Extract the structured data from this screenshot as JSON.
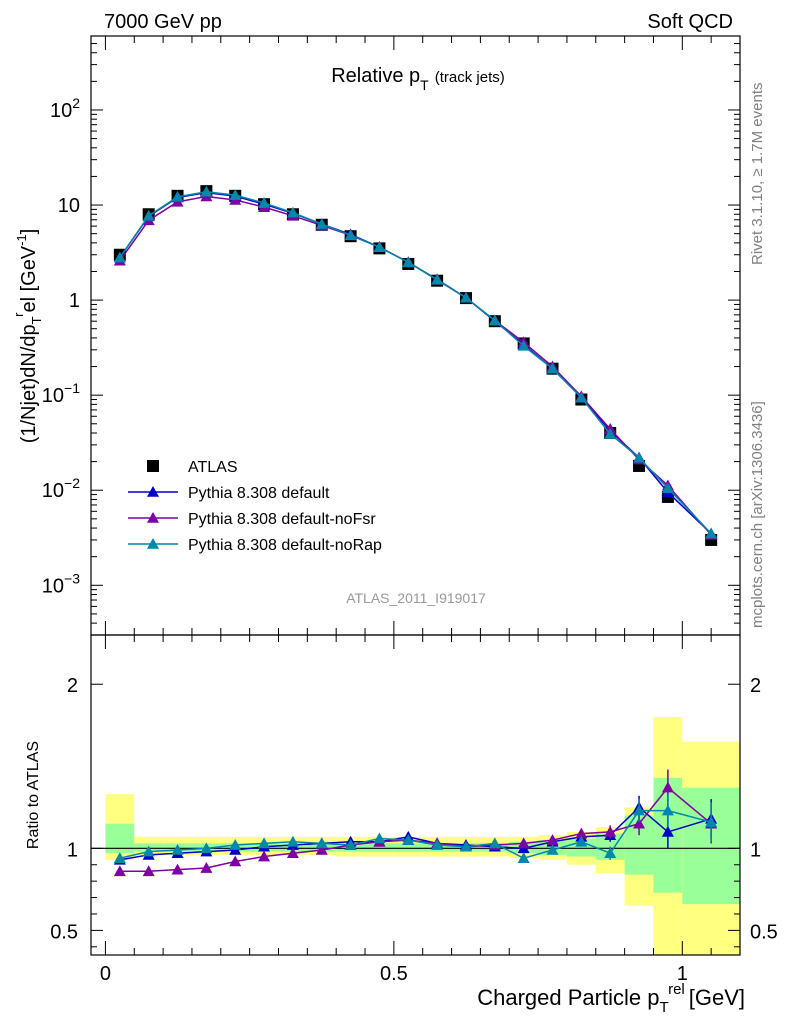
{
  "header": {
    "left": "7000 GeV pp",
    "right": "Soft QCD"
  },
  "side_labels": {
    "upper": "Rivet 3.1.10, ≥ 1.7M events",
    "lower": "mcplots.cern.ch [arXiv:1306.3436]"
  },
  "analysis_label": "ATLAS_2011_I919017",
  "colors": {
    "atlas": "#000000",
    "default": "#0000cc",
    "noFsr": "#7f00a5",
    "noRap": "#0088aa",
    "band_yellow": "#ffff80",
    "band_green": "#99ff99"
  },
  "chart_data": [
    {
      "type": "line",
      "panel": "main",
      "title": "Relative p_T (track jets)",
      "title_main": "Relative p",
      "title_sub": "T",
      "title_extra": "(track jets)",
      "ylabel": "(1/Njet)dN/dp_T^rel [GeV^-1]",
      "yscale": "log",
      "ylim": [
        0.0003,
        600
      ],
      "xlim": [
        -0.025,
        1.1
      ],
      "yticks": [
        {
          "value": 0.001,
          "base": "10",
          "exp": "−3"
        },
        {
          "value": 0.01,
          "base": "10",
          "exp": "−2"
        },
        {
          "value": 0.1,
          "base": "10",
          "exp": "−1"
        },
        {
          "value": 1,
          "base": "1",
          "exp": ""
        },
        {
          "value": 10,
          "base": "10",
          "exp": ""
        },
        {
          "value": 100,
          "base": "10",
          "exp": "2"
        }
      ],
      "legend_position": "bottom-left",
      "x": [
        0.025,
        0.075,
        0.125,
        0.175,
        0.225,
        0.275,
        0.325,
        0.375,
        0.425,
        0.475,
        0.525,
        0.575,
        0.625,
        0.675,
        0.725,
        0.775,
        0.825,
        0.875,
        0.925,
        0.975,
        1.05
      ],
      "series": [
        {
          "name": "ATLAS",
          "key": "atlas",
          "marker": "square",
          "values": [
            3.0,
            8.0,
            12.5,
            14.0,
            12.5,
            10.2,
            8.0,
            6.2,
            4.7,
            3.5,
            2.4,
            1.6,
            1.05,
            0.6,
            0.35,
            0.19,
            0.09,
            0.04,
            0.018,
            0.0085,
            0.003
          ]
        },
        {
          "name": "Pythia 8.308 default",
          "key": "default",
          "marker": "triangle",
          "values": [
            2.8,
            7.6,
            12.0,
            13.5,
            12.4,
            10.2,
            8.2,
            6.3,
            4.9,
            3.6,
            2.5,
            1.65,
            1.06,
            0.6,
            0.34,
            0.19,
            0.095,
            0.042,
            0.022,
            0.0095,
            0.0035
          ]
        },
        {
          "name": "Pythia 8.308 default-noFsr",
          "key": "noFsr",
          "marker": "triangle",
          "values": [
            2.6,
            6.9,
            10.8,
            12.3,
            11.3,
            9.5,
            7.7,
            6.1,
            4.8,
            3.6,
            2.5,
            1.63,
            1.06,
            0.61,
            0.36,
            0.2,
            0.097,
            0.044,
            0.021,
            0.0112,
            0.0034
          ]
        },
        {
          "name": "Pythia 8.308 default-noRap",
          "key": "noRap",
          "marker": "triangle",
          "values": [
            2.8,
            7.7,
            12.2,
            13.8,
            12.7,
            10.5,
            8.3,
            6.3,
            4.8,
            3.6,
            2.5,
            1.64,
            1.06,
            0.61,
            0.33,
            0.19,
            0.094,
            0.039,
            0.022,
            0.0105,
            0.0035
          ]
        }
      ]
    },
    {
      "type": "line",
      "panel": "ratio",
      "ylabel": "Ratio to ATLAS",
      "xlabel": "Charged Particle p_T^rel [GeV]",
      "xlabel_main": "Charged Particle p",
      "xlabel_sub": "T",
      "xlabel_sup": "rel",
      "xlabel_tail": "[GeV]",
      "ylim": [
        0.35,
        2.3
      ],
      "xlim": [
        -0.025,
        1.1
      ],
      "yticks": [
        0.5,
        1,
        2
      ],
      "ytick_labels": [
        "0.5",
        "1",
        "2"
      ],
      "xticks": [
        0,
        0.5,
        1
      ],
      "xtick_labels": [
        "0",
        "0.5",
        "1"
      ],
      "bins": [
        [
          0,
          0.05
        ],
        [
          0.05,
          0.1
        ],
        [
          0.1,
          0.15
        ],
        [
          0.15,
          0.2
        ],
        [
          0.2,
          0.25
        ],
        [
          0.25,
          0.3
        ],
        [
          0.3,
          0.35
        ],
        [
          0.35,
          0.4
        ],
        [
          0.4,
          0.45
        ],
        [
          0.45,
          0.5
        ],
        [
          0.5,
          0.55
        ],
        [
          0.55,
          0.6
        ],
        [
          0.6,
          0.65
        ],
        [
          0.65,
          0.7
        ],
        [
          0.7,
          0.75
        ],
        [
          0.75,
          0.8
        ],
        [
          0.8,
          0.85
        ],
        [
          0.85,
          0.9
        ],
        [
          0.9,
          0.95
        ],
        [
          0.95,
          1.0
        ],
        [
          1.0,
          1.1
        ]
      ],
      "band_total": [
        [
          0.93,
          1.33
        ],
        [
          0.96,
          1.07
        ],
        [
          0.96,
          1.07
        ],
        [
          0.96,
          1.07
        ],
        [
          0.96,
          1.07
        ],
        [
          0.96,
          1.07
        ],
        [
          0.96,
          1.07
        ],
        [
          0.96,
          1.07
        ],
        [
          0.95,
          1.07
        ],
        [
          0.95,
          1.07
        ],
        [
          0.95,
          1.07
        ],
        [
          0.95,
          1.07
        ],
        [
          0.95,
          1.07
        ],
        [
          0.95,
          1.07
        ],
        [
          0.94,
          1.07
        ],
        [
          0.93,
          1.08
        ],
        [
          0.9,
          1.1
        ],
        [
          0.85,
          1.13
        ],
        [
          0.65,
          1.25
        ],
        [
          0.35,
          1.8
        ],
        [
          0.35,
          1.65
        ]
      ],
      "band_stat": [
        [
          0.97,
          1.15
        ],
        [
          0.98,
          1.03
        ],
        [
          0.98,
          1.03
        ],
        [
          0.98,
          1.03
        ],
        [
          0.98,
          1.03
        ],
        [
          0.98,
          1.03
        ],
        [
          0.98,
          1.03
        ],
        [
          0.98,
          1.03
        ],
        [
          0.98,
          1.03
        ],
        [
          0.98,
          1.03
        ],
        [
          0.98,
          1.03
        ],
        [
          0.98,
          1.03
        ],
        [
          0.98,
          1.03
        ],
        [
          0.98,
          1.03
        ],
        [
          0.97,
          1.04
        ],
        [
          0.96,
          1.05
        ],
        [
          0.95,
          1.06
        ],
        [
          0.93,
          1.09
        ],
        [
          0.84,
          1.2
        ],
        [
          0.73,
          1.43
        ],
        [
          0.66,
          1.37
        ]
      ],
      "series": [
        {
          "name": "Pythia 8.308 default",
          "key": "default",
          "values": [
            0.93,
            0.96,
            0.97,
            0.98,
            0.99,
            1.01,
            1.02,
            1.03,
            1.04,
            1.04,
            1.07,
            1.03,
            1.02,
            1.01,
            1.0,
            1.04,
            1.07,
            1.08,
            1.25,
            1.1,
            1.18
          ],
          "errors": [
            0.01,
            0.01,
            0.01,
            0.01,
            0.01,
            0.01,
            0.01,
            0.01,
            0.01,
            0.01,
            0.01,
            0.01,
            0.01,
            0.01,
            0.02,
            0.02,
            0.03,
            0.04,
            0.07,
            0.1,
            0.12
          ]
        },
        {
          "name": "Pythia 8.308 default-noFsr",
          "key": "noFsr",
          "values": [
            0.86,
            0.86,
            0.87,
            0.88,
            0.92,
            0.95,
            0.97,
            0.99,
            1.02,
            1.04,
            1.05,
            1.03,
            1.01,
            1.02,
            1.03,
            1.05,
            1.09,
            1.1,
            1.15,
            1.37,
            1.15
          ],
          "errors": [
            0.01,
            0.01,
            0.01,
            0.01,
            0.01,
            0.01,
            0.01,
            0.01,
            0.01,
            0.01,
            0.01,
            0.01,
            0.01,
            0.01,
            0.02,
            0.02,
            0.03,
            0.04,
            0.07,
            0.11,
            0.12
          ]
        },
        {
          "name": "Pythia 8.308 default-noRap",
          "key": "noRap",
          "values": [
            0.94,
            0.98,
            0.99,
            1.0,
            1.02,
            1.03,
            1.04,
            1.03,
            1.02,
            1.06,
            1.05,
            1.02,
            1.01,
            1.03,
            0.94,
            0.99,
            1.04,
            0.97,
            1.23,
            1.23,
            1.16
          ],
          "errors": [
            0.01,
            0.01,
            0.01,
            0.01,
            0.01,
            0.01,
            0.01,
            0.01,
            0.01,
            0.01,
            0.01,
            0.01,
            0.01,
            0.01,
            0.02,
            0.02,
            0.03,
            0.04,
            0.07,
            0.1,
            0.12
          ]
        }
      ]
    }
  ]
}
